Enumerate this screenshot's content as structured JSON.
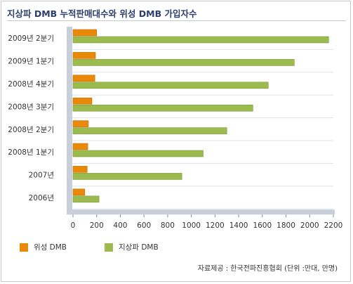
{
  "chart_data": {
    "type": "bar",
    "orientation": "horizontal",
    "title": "지상파 DMB 누적판매대수와 위성 DMB 가입자수",
    "categories": [
      "2009년 2분기",
      "2009년 1분기",
      "2008년 4분기",
      "2008년 3분기",
      "2008년 2분기",
      "2008년 1분기",
      "2007년",
      "2006년"
    ],
    "series": [
      {
        "name": "위성 DMB",
        "color": "#e8890a",
        "values": [
          200,
          190,
          185,
          160,
          130,
          125,
          120,
          100
        ]
      },
      {
        "name": "지상파 DMB",
        "color": "#9bbb4e",
        "values": [
          2160,
          1870,
          1650,
          1520,
          1300,
          1100,
          920,
          220
        ]
      }
    ],
    "xlim": [
      0,
      2200
    ],
    "xticks": [
      0,
      200,
      400,
      600,
      800,
      1000,
      1200,
      1400,
      1600,
      1800,
      2000,
      2200
    ],
    "grid": false,
    "legend_position": "bottom-left",
    "source": "자료제공 : 한국전파진흥협회 (단위 :만대, 만명)"
  }
}
